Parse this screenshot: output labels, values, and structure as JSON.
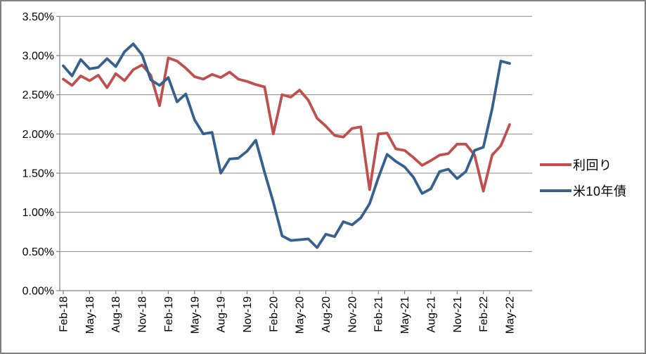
{
  "chart_data": {
    "type": "line",
    "title": "",
    "xlabel": "",
    "ylabel": "",
    "grid": true,
    "legend_position": "right",
    "ylim": [
      0,
      3.5
    ],
    "y_step": 0.5,
    "y_tick_labels": [
      "0.00%",
      "0.50%",
      "1.00%",
      "1.50%",
      "2.00%",
      "2.50%",
      "3.00%",
      "3.50%"
    ],
    "x_tick_labels": [
      "Feb-18",
      "May-18",
      "Aug-18",
      "Nov-18",
      "Feb-19",
      "May-19",
      "Aug-19",
      "Nov-19",
      "Feb-20",
      "May-20",
      "Aug-20",
      "Nov-20",
      "Feb-21",
      "May-21",
      "Aug-21",
      "Nov-21",
      "Feb-22",
      "May-22"
    ],
    "x_tick_every": 3,
    "x": [
      "Feb-18",
      "Mar-18",
      "Apr-18",
      "May-18",
      "Jun-18",
      "Jul-18",
      "Aug-18",
      "Sep-18",
      "Oct-18",
      "Nov-18",
      "Dec-18",
      "Jan-19",
      "Feb-19",
      "Mar-19",
      "Apr-19",
      "May-19",
      "Jun-19",
      "Jul-19",
      "Aug-19",
      "Sep-19",
      "Oct-19",
      "Nov-19",
      "Dec-19",
      "Jan-20",
      "Feb-20",
      "Mar-20",
      "Apr-20",
      "May-20",
      "Jun-20",
      "Jul-20",
      "Aug-20",
      "Sep-20",
      "Oct-20",
      "Nov-20",
      "Dec-20",
      "Jan-21",
      "Feb-21",
      "Mar-21",
      "Apr-21",
      "May-21",
      "Jun-21",
      "Jul-21",
      "Aug-21",
      "Sep-21",
      "Oct-21",
      "Nov-21",
      "Dec-21",
      "Jan-22",
      "Feb-22",
      "Mar-22",
      "Apr-22",
      "May-22"
    ],
    "series": [
      {
        "name": "利回り",
        "color": "#C0504D",
        "values": [
          2.7,
          2.62,
          2.74,
          2.68,
          2.75,
          2.59,
          2.77,
          2.68,
          2.82,
          2.88,
          2.75,
          2.36,
          2.97,
          2.93,
          2.84,
          2.73,
          2.7,
          2.76,
          2.72,
          2.79,
          2.7,
          2.67,
          2.63,
          2.6,
          2.0,
          2.5,
          2.47,
          2.56,
          2.43,
          2.2,
          2.1,
          1.98,
          1.96,
          2.07,
          2.09,
          1.29,
          2.0,
          2.01,
          1.81,
          1.79,
          1.7,
          1.6,
          1.66,
          1.73,
          1.75,
          1.87,
          1.87,
          1.73,
          1.27,
          1.73,
          1.85,
          2.12
        ]
      },
      {
        "name": "米10年債",
        "color": "#36608E",
        "values": [
          2.87,
          2.74,
          2.95,
          2.83,
          2.85,
          2.96,
          2.86,
          3.05,
          3.15,
          3.01,
          2.69,
          2.62,
          2.72,
          2.41,
          2.51,
          2.18,
          2.0,
          2.02,
          1.5,
          1.68,
          1.69,
          1.78,
          1.92,
          1.51,
          1.13,
          0.7,
          0.64,
          0.65,
          0.66,
          0.55,
          0.72,
          0.69,
          0.88,
          0.84,
          0.93,
          1.11,
          1.44,
          1.74,
          1.65,
          1.58,
          1.45,
          1.24,
          1.3,
          1.52,
          1.55,
          1.43,
          1.52,
          1.79,
          1.83,
          2.32,
          2.93,
          2.9
        ]
      }
    ],
    "axis_color": "#808080",
    "gridline_color": "#8a8a8a",
    "tick_label_color": "#000000"
  }
}
